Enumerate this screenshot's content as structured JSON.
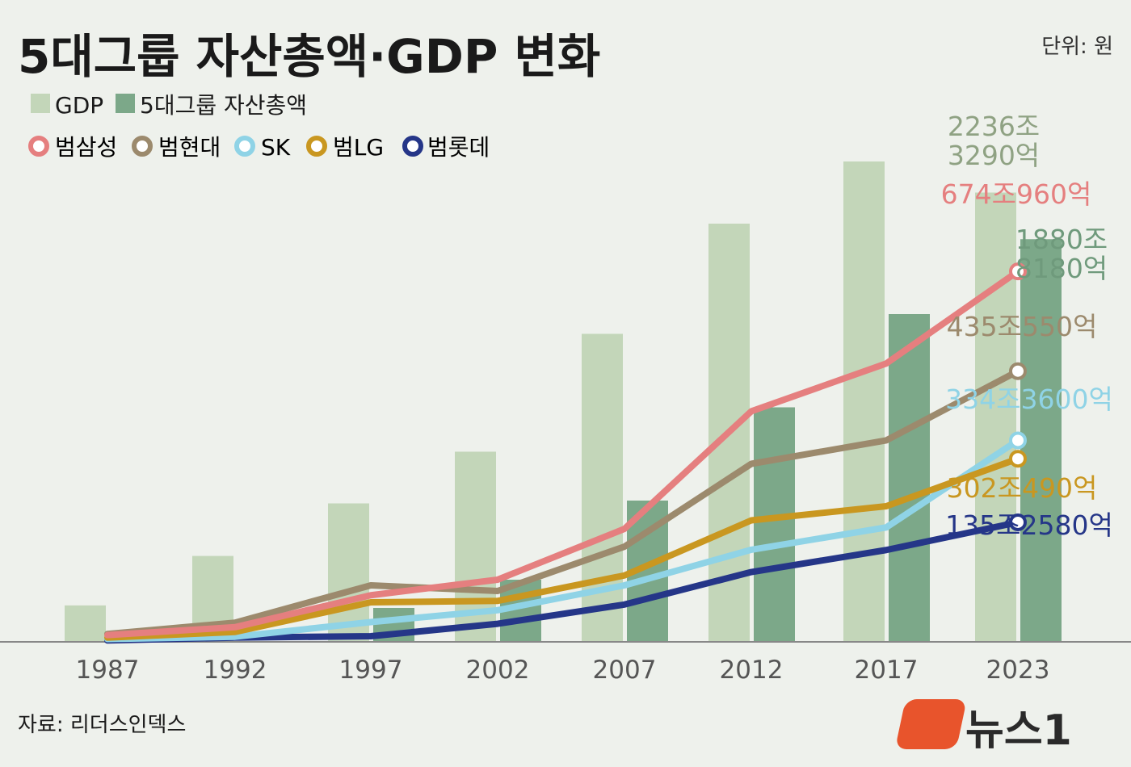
{
  "chart_data": {
    "type": "bar+line",
    "title": "5대그룹 자산총액·GDP 변화",
    "unit": "단위: 원",
    "source": "자료: 리더스인덱스",
    "categories": [
      "1987",
      "1992",
      "1997",
      "2002",
      "2007",
      "2012",
      "2017",
      "2023"
    ],
    "bar_series": [
      {
        "name": "GDP",
        "color": "#c3d6b9",
        "values": [
          129,
          304,
          490,
          673,
          1090,
          1480,
          1700,
          1590
        ]
      },
      {
        "name": "5대그룹 자산총액",
        "color": "#7ca889",
        "values": [
          0,
          0,
          120,
          220,
          500,
          830,
          1160,
          1425
        ]
      }
    ],
    "line_series": [
      {
        "name": "범삼성",
        "color": "#e57f7f",
        "values": [
          24,
          52,
          165,
          220,
          400,
          816,
          985,
          1311
        ]
      },
      {
        "name": "범현대",
        "color": "#9c8a6d",
        "values": [
          28,
          68,
          200,
          180,
          337,
          630,
          713,
          958
        ]
      },
      {
        "name": "SK",
        "color": "#8fd3e6",
        "values": [
          10,
          18,
          70,
          112,
          200,
          326,
          405,
          713
        ]
      },
      {
        "name": "범LG",
        "color": "#c99720",
        "values": [
          15,
          35,
          140,
          145,
          235,
          430,
          480,
          648
        ]
      },
      {
        "name": "범롯데",
        "color": "#253688",
        "values": [
          5,
          15,
          20,
          64,
          132,
          247,
          325,
          423
        ]
      }
    ],
    "ylim": [
      0,
      2000
    ],
    "end_labels": {
      "gdp": [
        "2236조",
        "3290억"
      ],
      "group_total": [
        "1880조",
        "8180억"
      ],
      "lines": [
        "674조960억",
        "435조550억",
        "334조3600억",
        "302조490억",
        "135조2580억"
      ]
    }
  },
  "publisher": "뉴스1"
}
